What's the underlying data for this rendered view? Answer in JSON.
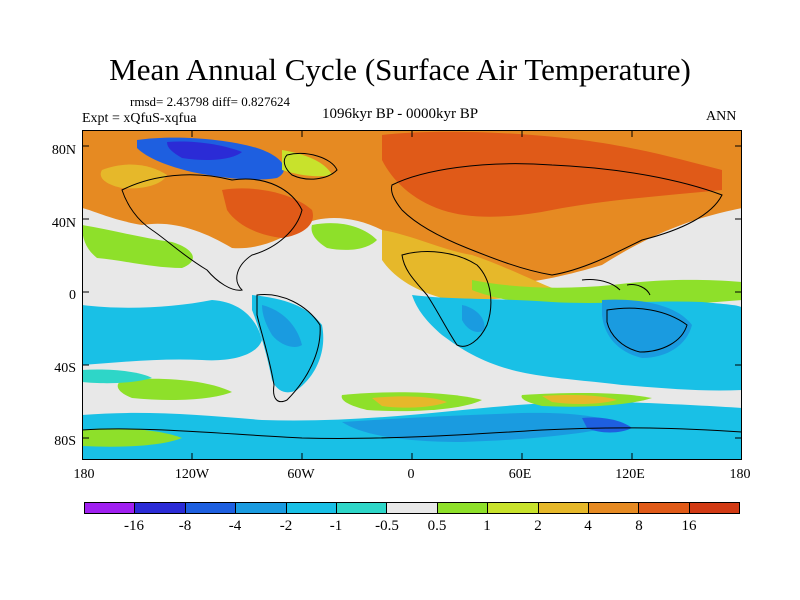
{
  "title": "Mean Annual Cycle (Surface Air Temperature)",
  "stats": "rmsd= 2.43798 diff= 0.827624",
  "experiment": "Expt = xQfuS-xqfua",
  "period": "1096kyr BP - 0000kyr BP",
  "season": "ANN",
  "axes": {
    "lat_labels": [
      "80N",
      "40N",
      "0",
      "40S",
      "80S"
    ],
    "lon_labels": [
      "180",
      "120W",
      "60W",
      "0",
      "60E",
      "120E",
      "180"
    ]
  },
  "colorbar": {
    "colors": [
      "#a020f0",
      "#2b2bd6",
      "#1e5fe0",
      "#1a9be0",
      "#19c0e6",
      "#2ed6c8",
      "#e8e8e8",
      "#8ee02a",
      "#c8e22c",
      "#e6b82a",
      "#e68a22",
      "#e05a18",
      "#d23a14"
    ],
    "labels": [
      "-16",
      "-8",
      "-4",
      "-2",
      "-1",
      "-0.5",
      "0.5",
      "1",
      "2",
      "4",
      "8",
      "16"
    ]
  },
  "map_colors": {
    "neutral": "#e8e8e8",
    "cyan": "#19c0e6",
    "lightblue": "#1a9be0",
    "blue": "#1e5fe0",
    "darkblue": "#2b2bd6",
    "teal": "#2ed6c8",
    "green": "#8ee02a",
    "yellowgreen": "#c8e22c",
    "gold": "#e6b82a",
    "orange": "#e68a22",
    "redorange": "#e05a18",
    "coast": "#000000"
  }
}
